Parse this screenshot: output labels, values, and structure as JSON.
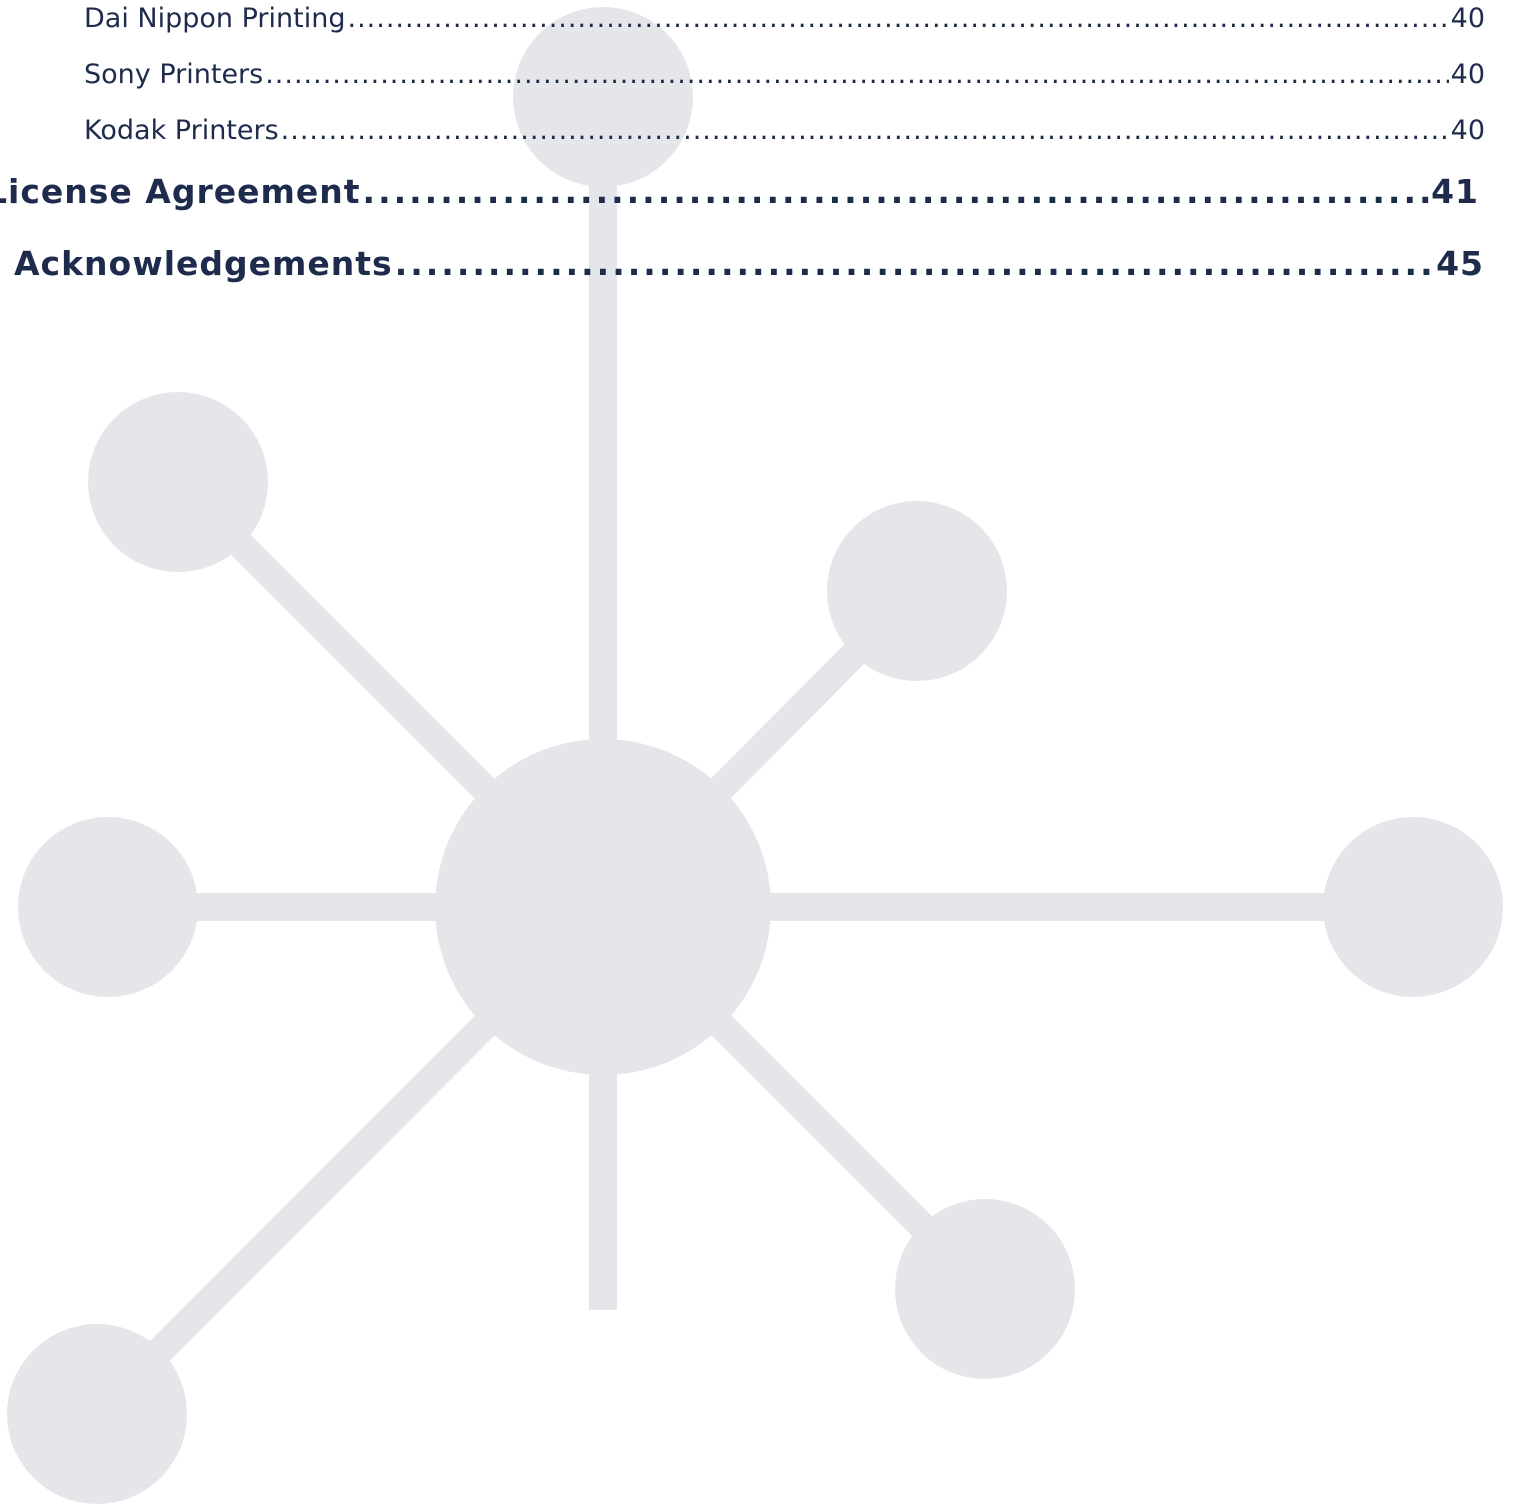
{
  "toc": {
    "sub_entries": [
      {
        "title": "Dai Nippon Printing",
        "page": "40"
      },
      {
        "title": "Sony Printers",
        "page": "40"
      },
      {
        "title": "Kodak Printers",
        "page": "40"
      }
    ],
    "main_entries": [
      {
        "title": "License Agreement",
        "page": "41"
      },
      {
        "title": "Acknowledgements",
        "page": "45"
      }
    ]
  }
}
